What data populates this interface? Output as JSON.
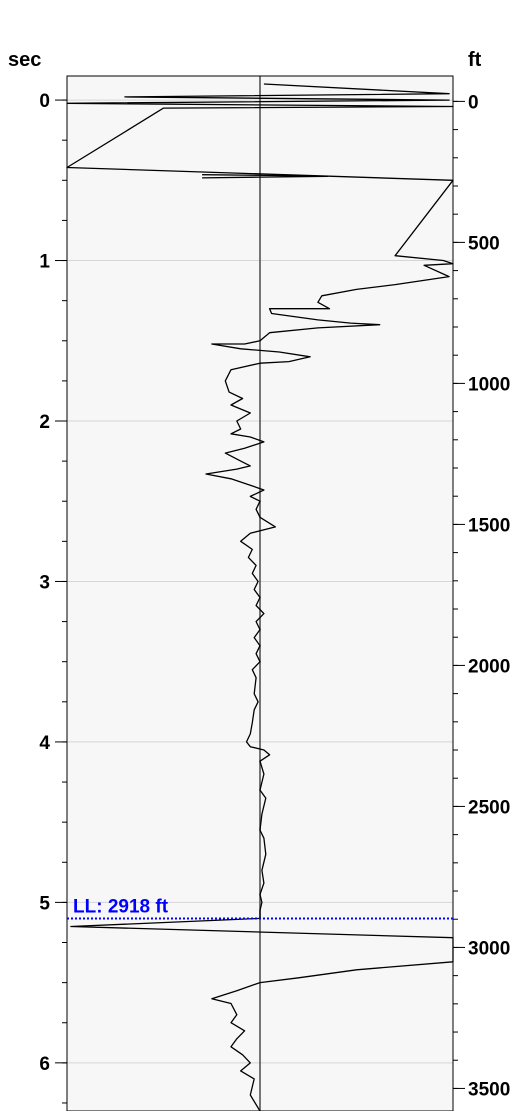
{
  "chart_data": {
    "type": "line",
    "left_axis": {
      "unit_label": "sec",
      "range": [
        -0.15,
        6.3
      ],
      "ticks": [
        0,
        1,
        2,
        3,
        4,
        5,
        6
      ],
      "tick_labels": [
        "0",
        "1",
        "2",
        "3",
        "4",
        "5",
        "6"
      ],
      "minor_step": 0.25
    },
    "right_axis": {
      "unit_label": "ft",
      "range": [
        -90,
        3580
      ],
      "ticks": [
        0,
        500,
        1000,
        1500,
        2000,
        2500,
        3000,
        3500
      ],
      "tick_labels": [
        "0",
        "500",
        "1000",
        "1500",
        "2000",
        "2500",
        "3000",
        "3500"
      ],
      "minor_step": 100
    },
    "x_range": [
      -1,
      1
    ],
    "grid": true,
    "level_marker": {
      "label": "LL: 2918 ft",
      "sec": 5.1,
      "ft": 2918,
      "color": "#0000ff"
    },
    "series": [
      {
        "color": "#000000",
        "points": [
          [
            0.02,
            -0.1
          ],
          [
            0.98,
            -0.04
          ],
          [
            -0.7,
            -0.02
          ],
          [
            0.98,
            0.0
          ],
          [
            -1,
            0.02
          ],
          [
            1,
            0.04
          ],
          [
            -0.5,
            0.05
          ],
          [
            -1,
            0.42
          ],
          [
            1,
            0.5
          ],
          [
            0.7,
            0.97
          ],
          [
            0.95,
            1.0
          ],
          [
            1,
            1.02
          ],
          [
            0.85,
            1.03
          ],
          [
            0.98,
            1.1
          ],
          [
            0.7,
            1.15
          ],
          [
            0.5,
            1.18
          ],
          [
            0.32,
            1.22
          ],
          [
            0.3,
            1.26
          ],
          [
            0.36,
            1.3
          ],
          [
            0.05,
            1.3
          ],
          [
            0.06,
            1.33
          ],
          [
            0.3,
            1.37
          ],
          [
            0.47,
            1.39
          ],
          [
            0.62,
            1.4
          ],
          [
            0.3,
            1.42
          ],
          [
            0.05,
            1.45
          ],
          [
            0.0,
            1.5
          ],
          [
            -0.08,
            1.52
          ],
          [
            -0.25,
            1.52
          ],
          [
            -0.1,
            1.55
          ],
          [
            0.1,
            1.57
          ],
          [
            0.26,
            1.6
          ],
          [
            0.15,
            1.63
          ],
          [
            0.0,
            1.64
          ],
          [
            -0.15,
            1.68
          ],
          [
            -0.18,
            1.75
          ],
          [
            -0.16,
            1.82
          ],
          [
            -0.09,
            1.86
          ],
          [
            -0.15,
            1.9
          ],
          [
            -0.05,
            1.95
          ],
          [
            -0.12,
            2.0
          ],
          [
            -0.1,
            2.05
          ],
          [
            -0.15,
            2.08
          ],
          [
            -0.05,
            2.1
          ],
          [
            0.02,
            2.13
          ],
          [
            -0.08,
            2.17
          ],
          [
            -0.18,
            2.2
          ],
          [
            -0.1,
            2.25
          ],
          [
            -0.05,
            2.28
          ],
          [
            -0.12,
            2.3
          ],
          [
            -0.28,
            2.33
          ],
          [
            -0.15,
            2.36
          ],
          [
            -0.05,
            2.4
          ],
          [
            0.02,
            2.43
          ],
          [
            -0.05,
            2.47
          ],
          [
            0.0,
            2.5
          ],
          [
            -0.02,
            2.55
          ],
          [
            0.0,
            2.6
          ],
          [
            0.08,
            2.66
          ],
          [
            -0.05,
            2.7
          ],
          [
            -0.1,
            2.75
          ],
          [
            -0.04,
            2.8
          ],
          [
            -0.06,
            2.85
          ],
          [
            -0.02,
            2.9
          ],
          [
            -0.04,
            2.95
          ],
          [
            -0.01,
            3.0
          ],
          [
            -0.03,
            3.05
          ],
          [
            0.0,
            3.1
          ],
          [
            -0.02,
            3.15
          ],
          [
            0.02,
            3.2
          ],
          [
            -0.02,
            3.25
          ],
          [
            0.0,
            3.3
          ],
          [
            -0.03,
            3.35
          ],
          [
            0.0,
            3.4
          ],
          [
            -0.02,
            3.45
          ],
          [
            0.0,
            3.5
          ],
          [
            -0.04,
            3.55
          ],
          [
            -0.02,
            3.6
          ],
          [
            -0.03,
            3.7
          ],
          [
            -0.01,
            3.75
          ],
          [
            -0.03,
            3.8
          ],
          [
            -0.04,
            3.88
          ],
          [
            -0.05,
            3.95
          ],
          [
            -0.07,
            4.0
          ],
          [
            -0.05,
            4.03
          ],
          [
            0.02,
            4.05
          ],
          [
            0.05,
            4.08
          ],
          [
            0.0,
            4.12
          ],
          [
            0.02,
            4.2
          ],
          [
            0.0,
            4.3
          ],
          [
            0.03,
            4.35
          ],
          [
            0.01,
            4.45
          ],
          [
            0.0,
            4.55
          ],
          [
            0.02,
            4.6
          ],
          [
            0.03,
            4.7
          ],
          [
            0.01,
            4.8
          ],
          [
            0.02,
            4.88
          ],
          [
            0.0,
            4.95
          ],
          [
            0.01,
            5.0
          ],
          [
            0.0,
            5.05
          ],
          [
            0.0,
            5.1
          ],
          [
            -0.98,
            5.15
          ],
          [
            1,
            5.22
          ],
          [
            1,
            5.37
          ],
          [
            0.5,
            5.42
          ],
          [
            0.2,
            5.47
          ],
          [
            0.0,
            5.5
          ],
          [
            -0.12,
            5.55
          ],
          [
            -0.25,
            5.6
          ],
          [
            -0.15,
            5.63
          ],
          [
            -0.12,
            5.7
          ],
          [
            -0.15,
            5.75
          ],
          [
            -0.08,
            5.8
          ],
          [
            -0.12,
            5.85
          ],
          [
            -0.15,
            5.9
          ],
          [
            -0.09,
            5.95
          ],
          [
            -0.05,
            6.0
          ],
          [
            -0.1,
            6.05
          ],
          [
            -0.03,
            6.1
          ],
          [
            -0.05,
            6.2
          ],
          [
            0.0,
            6.3
          ]
        ]
      },
      {
        "color": "#000000",
        "points": [
          [
            -0.3,
            0.465
          ],
          [
            0.1,
            0.47
          ],
          [
            0.35,
            0.475
          ],
          [
            0.0,
            0.48
          ],
          [
            -0.3,
            0.485
          ]
        ]
      }
    ]
  }
}
